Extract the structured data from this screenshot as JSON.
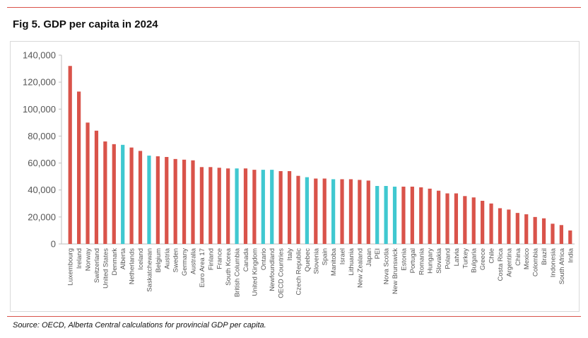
{
  "figure": {
    "title": "Fig 5. GDP per capita in 2024",
    "source": "Source: OECD, Alberta Central calculations for provincial GDP per capita."
  },
  "colors": {
    "country_bar": "#d9534a",
    "province_bar": "#40c8d0",
    "rule": "#d9534a",
    "axis": "#bfbfbf",
    "text": "#555555"
  },
  "chart_data": {
    "type": "bar",
    "title": "",
    "xlabel": "",
    "ylabel": "",
    "ylim": [
      0,
      140000
    ],
    "yticks": [
      0,
      20000,
      40000,
      60000,
      80000,
      100000,
      120000,
      140000
    ],
    "ytick_labels": [
      "0",
      "20,000",
      "40,000",
      "60,000",
      "80,000",
      "100,000",
      "120,000",
      "140,000"
    ],
    "grid": false,
    "legend": "none",
    "categories": [
      "Luxembourg",
      "Ireland",
      "Norway",
      "Switzerland",
      "United States",
      "Denmark",
      "Alberta",
      "Netherlands",
      "Iceland",
      "Saskatchewan",
      "Belgium",
      "Austria",
      "Sweden",
      "Germany",
      "Australia",
      "Euro Area 17",
      "Finland",
      "France",
      "South Korea",
      "British Columbia",
      "Canada",
      "United Kingdom",
      "Ontario",
      "Newfoundland",
      "OECD Countries",
      "Italy",
      "Czech Republic",
      "Quebec",
      "Slovenia",
      "Spain",
      "Manitoba",
      "Israel",
      "Lithuania",
      "New Zealand",
      "Japan",
      "PEI",
      "Nova Scotia",
      "New Brunswick",
      "Estonia",
      "Portugal",
      "Romania",
      "Hungary",
      "Slovakia",
      "Poland",
      "Latvia",
      "Turkey",
      "Bulgaria",
      "Greece",
      "Chile",
      "Costa Rica",
      "Argentina",
      "China",
      "Mexico",
      "Colombia",
      "Brazil",
      "Indonesia",
      "South Africa",
      "India"
    ],
    "values": [
      132000,
      113000,
      90000,
      84000,
      76000,
      74000,
      73500,
      71500,
      69000,
      65500,
      65000,
      64500,
      63000,
      62500,
      62000,
      57000,
      57000,
      56500,
      56000,
      56000,
      56000,
      55000,
      55000,
      55000,
      54000,
      54000,
      50500,
      49500,
      48500,
      48500,
      48000,
      48000,
      48000,
      47500,
      47000,
      43000,
      43000,
      42500,
      42500,
      42500,
      42000,
      41000,
      39500,
      37500,
      37500,
      35500,
      34500,
      32000,
      30000,
      26500,
      25500,
      23000,
      22000,
      20000,
      19000,
      15000,
      14000,
      10000
    ],
    "province_categories": [
      "Alberta",
      "Saskatchewan",
      "British Columbia",
      "Ontario",
      "Newfoundland",
      "Quebec",
      "Manitoba",
      "PEI",
      "Nova Scotia",
      "New Brunswick"
    ]
  }
}
